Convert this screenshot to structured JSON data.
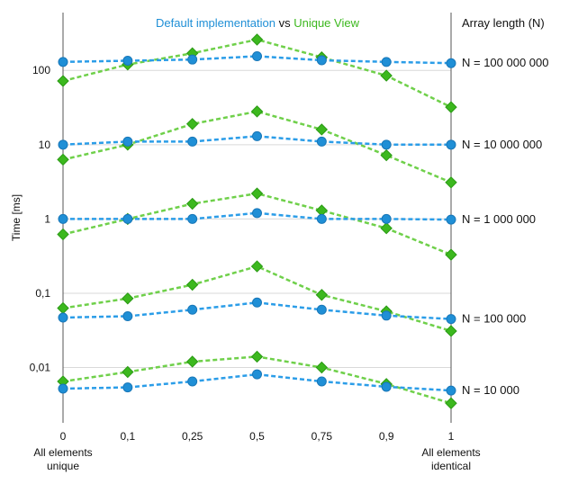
{
  "chart_data": {
    "type": "line",
    "title_parts": [
      {
        "text": "Default implementation",
        "color": "#1f8fd6"
      },
      {
        "text": " vs ",
        "color": "#111111"
      },
      {
        "text": "Unique View",
        "color": "#3cb81e"
      }
    ],
    "legend_title": "Array length (N)",
    "ylabel": "Time [ms]",
    "y_scale": "log",
    "ylim": [
      0.0018,
      600
    ],
    "grid": "horizontal at y tick values",
    "x_ticks": [
      "0",
      "0,1",
      "0,25",
      "0,5",
      "0,75",
      "0,9",
      "1"
    ],
    "x_end_labels": {
      "left": [
        "All elements",
        "unique"
      ],
      "right": [
        "All elements",
        "identical"
      ]
    },
    "y_ticks": [
      {
        "value": 0.01,
        "label": "0,01"
      },
      {
        "value": 0.1,
        "label": "0,1"
      },
      {
        "value": 1,
        "label": "1"
      },
      {
        "value": 10,
        "label": "10"
      },
      {
        "value": 100,
        "label": "100"
      }
    ],
    "colors": {
      "default": "#1f8fd6",
      "unique_view": "#3cb81e",
      "grid": "#d9d9d9"
    },
    "groups": [
      {
        "label": "N = 100 000 000",
        "default": [
          130,
          135,
          140,
          155,
          137,
          130,
          125
        ],
        "unique_view": [
          72,
          120,
          170,
          260,
          150,
          85,
          32
        ]
      },
      {
        "label": "N = 10 000 000",
        "default": [
          10.0,
          11.0,
          11.0,
          13.0,
          11.0,
          10.0,
          10.0
        ],
        "unique_view": [
          6.3,
          10.0,
          19.0,
          28.0,
          16.0,
          7.2,
          3.1
        ]
      },
      {
        "label": "N = 1 000 000",
        "default": [
          1.0,
          1.0,
          1.0,
          1.2,
          1.0,
          1.0,
          0.98
        ],
        "unique_view": [
          0.62,
          1.0,
          1.6,
          2.2,
          1.3,
          0.75,
          0.33
        ]
      },
      {
        "label": "N = 100 000",
        "default": [
          0.047,
          0.049,
          0.06,
          0.075,
          0.06,
          0.05,
          0.045
        ],
        "unique_view": [
          0.063,
          0.085,
          0.13,
          0.23,
          0.095,
          0.057,
          0.031
        ]
      },
      {
        "label": "N = 10 000",
        "default": [
          0.0052,
          0.0054,
          0.0065,
          0.0081,
          0.0065,
          0.0055,
          0.0049
        ],
        "unique_view": [
          0.0065,
          0.0087,
          0.012,
          0.014,
          0.01,
          0.006,
          0.0033
        ]
      }
    ]
  }
}
